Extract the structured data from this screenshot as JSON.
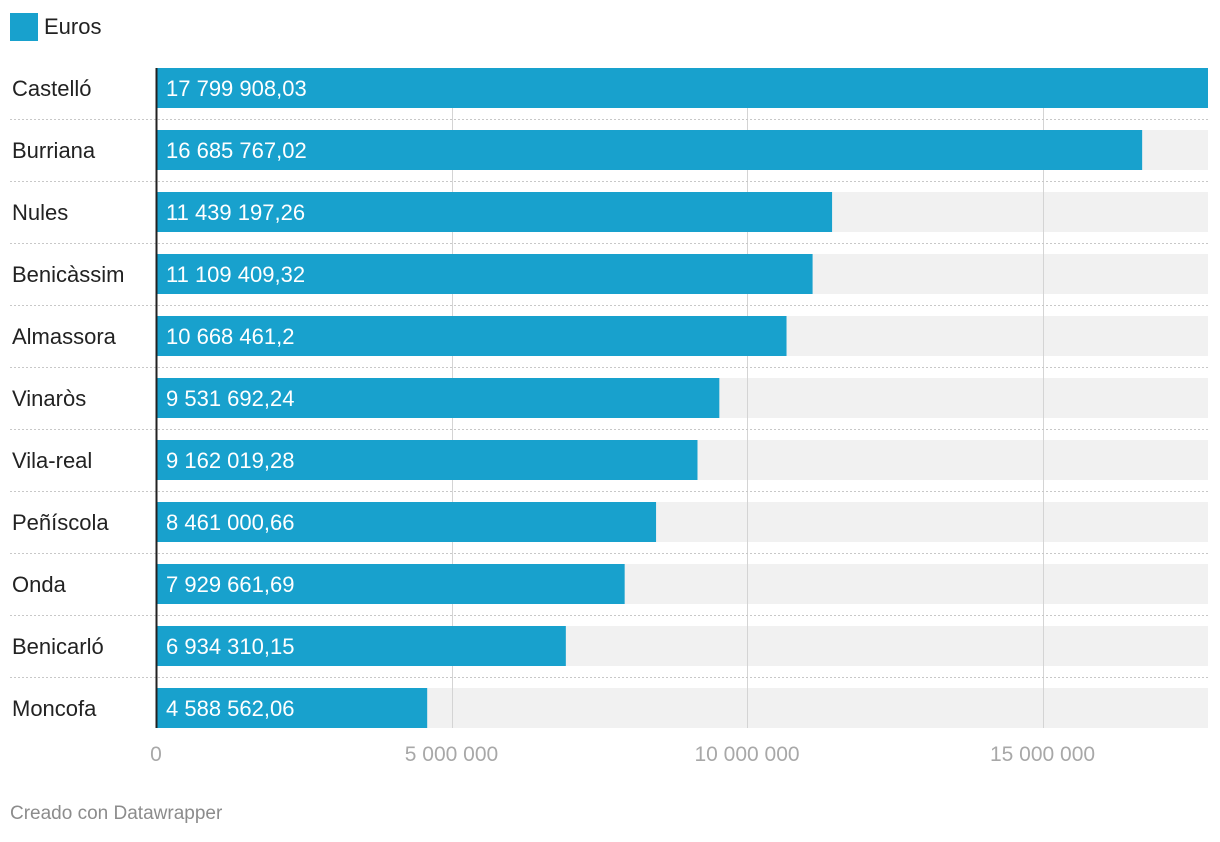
{
  "legend": {
    "label": "Euros",
    "color": "#18a1cd"
  },
  "footer": {
    "credit": "Creado con Datawrapper"
  },
  "colors": {
    "bar": "#18a1cd",
    "track": "#f1f1f1",
    "grid": "#d4d4d4",
    "label_in_bar": "#ffffff",
    "tick": "#a8a8a8",
    "category": "#222222"
  },
  "chart_data": {
    "type": "bar",
    "orientation": "horizontal",
    "title": "",
    "xlabel": "",
    "ylabel": "",
    "series_name": "Euros",
    "categories": [
      "Castelló",
      "Burriana",
      "Nules",
      "Benicàssim",
      "Almassora",
      "Vinaròs",
      "Vila-real",
      "Peñíscola",
      "Onda",
      "Benicarló",
      "Moncofa"
    ],
    "values": [
      17799908.03,
      16685767.02,
      11439197.26,
      11109409.32,
      10668461.2,
      9531692.24,
      9162019.28,
      8461000.66,
      7929661.69,
      6934310.15,
      4588562.06
    ],
    "value_labels": [
      "17 799 908,03",
      "16 685 767,02",
      "11 439 197,26",
      "11 109 409,32",
      "10 668 461,2",
      "9 531 692,24",
      "9 162 019,28",
      "8 461 000,66",
      "7 929 661,69",
      "6 934 310,15",
      "4 588 562,06"
    ],
    "xlim": [
      0,
      17799908.03
    ],
    "xticks": [
      0,
      5000000,
      10000000,
      15000000
    ],
    "xtick_labels": [
      "0",
      "5 000 000",
      "10 000 000",
      "15 000 000"
    ],
    "grid": true
  }
}
